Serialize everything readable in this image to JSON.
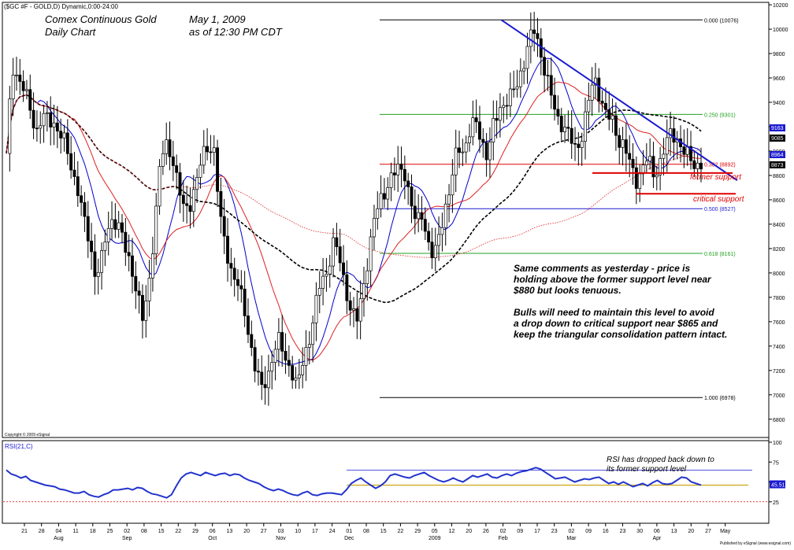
{
  "header": {
    "symbol_line": "($GC #F - GOLD,D) Dynamic,0:00-24:00",
    "title_line1": "Comex Continuous Gold",
    "title_line2": "Daily Chart",
    "date_line1": "May 1, 2009",
    "date_line2": "as of  12:30 PM CDT",
    "copyright": "Copyright © 2009 eSignal",
    "footer": "Published by eSignal (www.esignal.com)"
  },
  "comments": {
    "para1": [
      "Same comments as yesterday - price is",
      "holding above the former support level near",
      "$880 but looks tenuous."
    ],
    "para2": [
      "Bulls will need to maintain this level to avoid",
      "a drop down to critical support near $865 and",
      "keep the triangular consolidation pattern intact."
    ],
    "rsi_note": [
      "RSI has dropped back down to",
      "its former support level"
    ]
  },
  "labels": {
    "former_support": "former support",
    "critical_support": "critical support",
    "rsi_title": "RSI(21,C)"
  },
  "colors": {
    "price_bars": "#000000",
    "trendline": "#1a1ad0",
    "support": "#e00000",
    "fib_high": "#000000",
    "fib_green": "#22a022",
    "fib_red": "#e00000",
    "fib_blue": "#1a1ad0",
    "rsi_line": "#2233cc",
    "ma_fast": "#0000cc",
    "ma_mid": "#dd2020",
    "ma_slow": "#000000",
    "ma_long": "#dd2020"
  },
  "chart_data": {
    "type": "candlestick",
    "price_axis_ticks": [
      6800,
      7000,
      7200,
      7400,
      7600,
      7800,
      8000,
      8200,
      8400,
      8600,
      8800,
      9000,
      9200,
      9400,
      9600,
      9800,
      10000,
      10200
    ],
    "price_range": [
      6650,
      10220
    ],
    "right_price_boxes": [
      "9163",
      "9085",
      "8964",
      "8873"
    ],
    "x_tick_labels": [
      "21",
      "28",
      "04",
      "11",
      "18",
      "25",
      "02",
      "08",
      "15",
      "22",
      "29",
      "06",
      "13",
      "20",
      "27",
      "03",
      "10",
      "17",
      "24",
      "01",
      "08",
      "15",
      "22",
      "29",
      "05",
      "12",
      "20",
      "26",
      "02",
      "09",
      "17",
      "23",
      "02",
      "09",
      "16",
      "23",
      "30",
      "06",
      "13",
      "20",
      "27",
      "May"
    ],
    "month_labels": [
      {
        "label": "Aug",
        "tick": 2
      },
      {
        "label": "Sep",
        "tick": 6
      },
      {
        "label": "Oct",
        "tick": 11
      },
      {
        "label": "Nov",
        "tick": 15
      },
      {
        "label": "Dec",
        "tick": 19
      },
      {
        "label": "2009",
        "tick": 24
      },
      {
        "label": "Feb",
        "tick": 28
      },
      {
        "label": "Mar",
        "tick": 32
      },
      {
        "label": "Apr",
        "tick": 37
      }
    ],
    "fib_levels": [
      {
        "label": "0.000 (10076)",
        "value": 10076
      },
      {
        "label": "0.250 (9301)",
        "value": 9301
      },
      {
        "label": "0.382 (8892)",
        "value": 8892
      },
      {
        "label": "0.500 (8527)",
        "value": 8527
      },
      {
        "label": "0.618 (8161)",
        "value": 8161
      },
      {
        "label": "1.000 (6978)",
        "value": 6978
      }
    ],
    "support_lines": [
      {
        "name": "former support",
        "value": 8820
      },
      {
        "name": "critical support",
        "value": 8650
      }
    ],
    "trendline": {
      "from": {
        "tick": 27.9,
        "value": 10076
      },
      "to": {
        "tick": 41.7,
        "value": 8760
      }
    },
    "rsi": {
      "axis_ticks": [
        25,
        50,
        75,
        100
      ],
      "range": [
        0,
        100
      ],
      "last_value": "45.51",
      "support_level": 46,
      "upper_level": 65,
      "lower_level": 25,
      "values": [
        65,
        60,
        58,
        55,
        57,
        52,
        50,
        48,
        46,
        45,
        44,
        41,
        40,
        38,
        36,
        36,
        38,
        34,
        32,
        31,
        34,
        36,
        40,
        40,
        41,
        42,
        40,
        43,
        42,
        38,
        35,
        34,
        32,
        30,
        34,
        45,
        55,
        60,
        62,
        60,
        58,
        62,
        60,
        58,
        60,
        61,
        58,
        60,
        59,
        55,
        52,
        50,
        48,
        44,
        41,
        39,
        41,
        39,
        36,
        34,
        33,
        36,
        38,
        34,
        33,
        35,
        36,
        36,
        35,
        34,
        40,
        48,
        52,
        55,
        50,
        46,
        42,
        45,
        50,
        58,
        60,
        58,
        56,
        55,
        58,
        60,
        62,
        58,
        55,
        52,
        50,
        52,
        55,
        52,
        50,
        54,
        58,
        56,
        58,
        60,
        56,
        55,
        58,
        60,
        58,
        61,
        63,
        64,
        66,
        68,
        66,
        62,
        58,
        54,
        55,
        56,
        53,
        50,
        52,
        54,
        53,
        55,
        56,
        52,
        48,
        50,
        47,
        50,
        47,
        44,
        46,
        48,
        45,
        49,
        52,
        48,
        47,
        48,
        52,
        56,
        55,
        50,
        48,
        46
      ]
    },
    "price_path": [
      8950,
      9700,
      9600,
      9500,
      9350,
      9150,
      9280,
      9260,
      9230,
      9150,
      9050,
      8850,
      8700,
      8450,
      8250,
      7980,
      8100,
      8350,
      8450,
      8380,
      8200,
      8060,
      7850,
      7600,
      7900,
      8400,
      8950,
      9050,
      8950,
      8700,
      8500,
      8580,
      8750,
      8950,
      9050,
      9000,
      8450,
      8200,
      8000,
      7900,
      7720,
      7450,
      7200,
      7050,
      7150,
      7350,
      7450,
      7300,
      7200,
      7050,
      7300,
      7450,
      7700,
      7950,
      8000,
      8250,
      8150,
      7900,
      7700,
      7600,
      7850,
      8150,
      8450,
      8600,
      8700,
      8800,
      8850,
      8850,
      8600,
      8400,
      8500,
      8250,
      8100,
      8350,
      8550,
      8750,
      9050,
      9000,
      9150,
      9250,
      9100,
      8950,
      9200,
      9350,
      9400,
      9450,
      9550,
      9700,
      9900,
      10000,
      9800,
      9600,
      9400,
      9250,
      9200,
      9100,
      9000,
      9150,
      9400,
      9600,
      9450,
      9300,
      9250,
      9100,
      9050,
      8900,
      8750,
      8850,
      8950,
      8800,
      8900,
      9050,
      9150,
      9100,
      9000,
      8950,
      8880,
      8900
    ]
  }
}
